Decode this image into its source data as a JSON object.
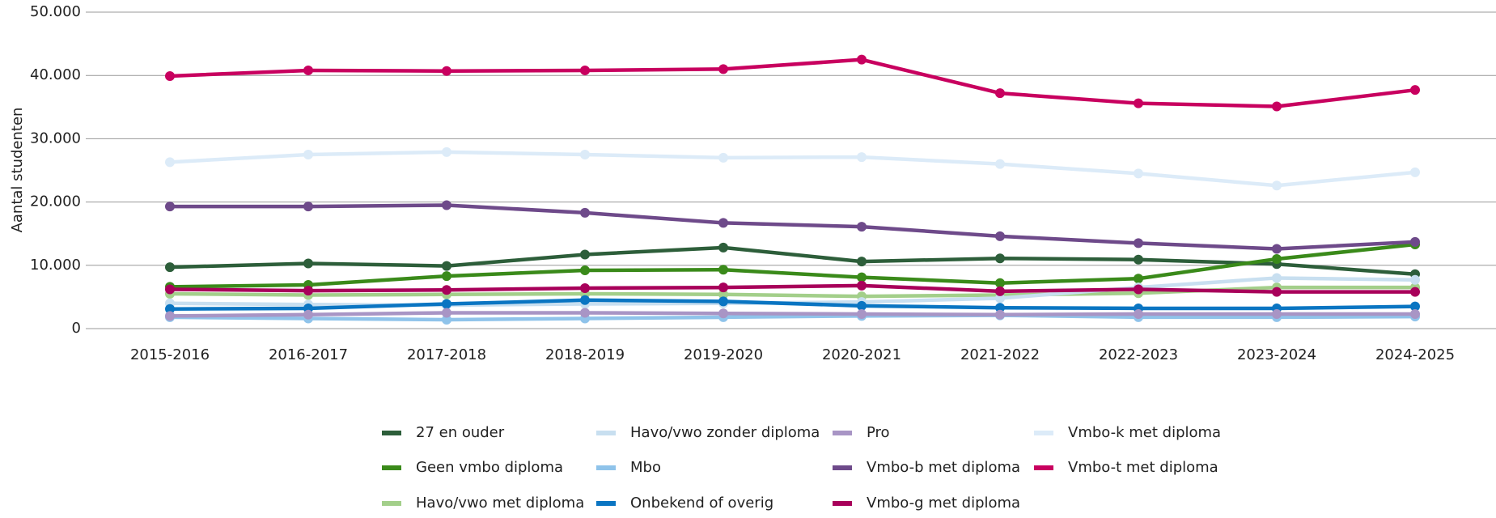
{
  "chart_data": {
    "type": "line",
    "ylabel": "Aantal studenten",
    "categories": [
      "2015-2016",
      "2016-2017",
      "2017-2018",
      "2018-2019",
      "2019-2020",
      "2020-2021",
      "2021-2022",
      "2022-2023",
      "2023-2024",
      "2024-2025"
    ],
    "ylim": [
      0,
      50000
    ],
    "yticks": [
      0,
      {
        "value": 10000,
        "label": "10.000"
      },
      {
        "value": 20000,
        "label": "20.000"
      },
      {
        "value": 30000,
        "label": "30.000"
      },
      {
        "value": 40000,
        "label": "40.000"
      },
      {
        "value": 50000,
        "label": "50.000"
      }
    ],
    "grid": true,
    "series": [
      {
        "name": "27 en ouder",
        "color": "#2d5e3a",
        "values": [
          9700,
          10300,
          9900,
          11700,
          12800,
          10600,
          11100,
          10900,
          10200,
          8600
        ]
      },
      {
        "name": "Geen vmbo diploma",
        "color": "#3a8a1a",
        "values": [
          6600,
          6900,
          8300,
          9200,
          9300,
          8100,
          7200,
          7900,
          11000,
          13300
        ]
      },
      {
        "name": "Havo/vwo met diploma",
        "color": "#a3cf8a",
        "values": [
          5500,
          5300,
          5400,
          5500,
          5400,
          5100,
          5300,
          5600,
          6500,
          6500
        ]
      },
      {
        "name": "Havo/vwo zonder diploma",
        "color": "#c8dff0",
        "values": [
          4000,
          3800,
          3700,
          3900,
          4000,
          4200,
          4800,
          6500,
          8000,
          7700
        ]
      },
      {
        "name": "Mbo",
        "color": "#8fc3ea",
        "values": [
          1800,
          1600,
          1400,
          1600,
          1800,
          2000,
          2100,
          1800,
          1800,
          1900
        ]
      },
      {
        "name": "Onbekend of overig",
        "color": "#0a75c2",
        "values": [
          3100,
          3200,
          3900,
          4500,
          4300,
          3600,
          3300,
          3200,
          3200,
          3500
        ]
      },
      {
        "name": "Pro",
        "color": "#a895c5",
        "values": [
          2000,
          2200,
          2500,
          2500,
          2400,
          2300,
          2200,
          2300,
          2300,
          2300
        ]
      },
      {
        "name": "Vmbo-b met diploma",
        "color": "#6e4a8a",
        "values": [
          19300,
          19300,
          19500,
          18300,
          16700,
          16100,
          14600,
          13500,
          12600,
          13700
        ]
      },
      {
        "name": "Vmbo-g met diploma",
        "color": "#a8005a",
        "values": [
          6200,
          6000,
          6100,
          6400,
          6500,
          6800,
          5900,
          6200,
          5800,
          5800
        ]
      },
      {
        "name": "Vmbo-k met diploma",
        "color": "#dcebf8",
        "values": [
          26300,
          27500,
          27900,
          27500,
          27000,
          27100,
          26000,
          24500,
          22600,
          24700
        ]
      },
      {
        "name": "Vmbo-t met diploma",
        "color": "#c8005f",
        "values": [
          39900,
          40800,
          40700,
          40800,
          41000,
          42500,
          37200,
          35600,
          35100,
          37700
        ]
      }
    ]
  }
}
